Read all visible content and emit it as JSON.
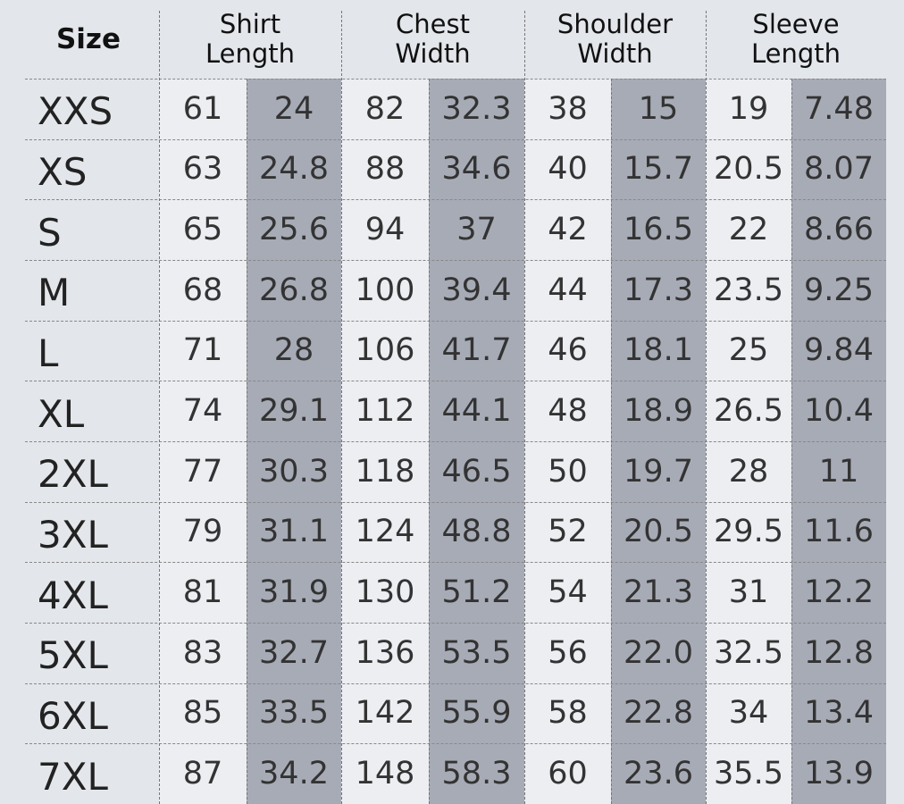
{
  "table": {
    "size_header": "Size",
    "groups": [
      "Shirt\nLength",
      "Chest\nWidth",
      "Shoulder\nWidth",
      "Sleeve\nLength"
    ],
    "colors": {
      "background": "#e3e6eb",
      "light_cell": "#eceef2",
      "dark_cell": "#a7abb6"
    },
    "rows": [
      {
        "size": "XXS",
        "values": [
          "61",
          "24",
          "82",
          "32.3",
          "38",
          "15",
          "19",
          "7.48"
        ]
      },
      {
        "size": "XS",
        "values": [
          "63",
          "24.8",
          "88",
          "34.6",
          "40",
          "15.7",
          "20.5",
          "8.07"
        ]
      },
      {
        "size": "S",
        "values": [
          "65",
          "25.6",
          "94",
          "37",
          "42",
          "16.5",
          "22",
          "8.66"
        ]
      },
      {
        "size": "M",
        "values": [
          "68",
          "26.8",
          "100",
          "39.4",
          "44",
          "17.3",
          "23.5",
          "9.25"
        ]
      },
      {
        "size": "L",
        "values": [
          "71",
          "28",
          "106",
          "41.7",
          "46",
          "18.1",
          "25",
          "9.84"
        ]
      },
      {
        "size": "XL",
        "values": [
          "74",
          "29.1",
          "112",
          "44.1",
          "48",
          "18.9",
          "26.5",
          "10.4"
        ]
      },
      {
        "size": "2XL",
        "values": [
          "77",
          "30.3",
          "118",
          "46.5",
          "50",
          "19.7",
          "28",
          "11"
        ]
      },
      {
        "size": "3XL",
        "values": [
          "79",
          "31.1",
          "124",
          "48.8",
          "52",
          "20.5",
          "29.5",
          "11.6"
        ]
      },
      {
        "size": "4XL",
        "values": [
          "81",
          "31.9",
          "130",
          "51.2",
          "54",
          "21.3",
          "31",
          "12.2"
        ]
      },
      {
        "size": "5XL",
        "values": [
          "83",
          "32.7",
          "136",
          "53.5",
          "56",
          "22.0",
          "32.5",
          "12.8"
        ]
      },
      {
        "size": "6XL",
        "values": [
          "85",
          "33.5",
          "142",
          "55.9",
          "58",
          "22.8",
          "34",
          "13.4"
        ]
      },
      {
        "size": "7XL",
        "values": [
          "87",
          "34.2",
          "148",
          "58.3",
          "60",
          "23.6",
          "35.5",
          "13.9"
        ]
      }
    ]
  }
}
